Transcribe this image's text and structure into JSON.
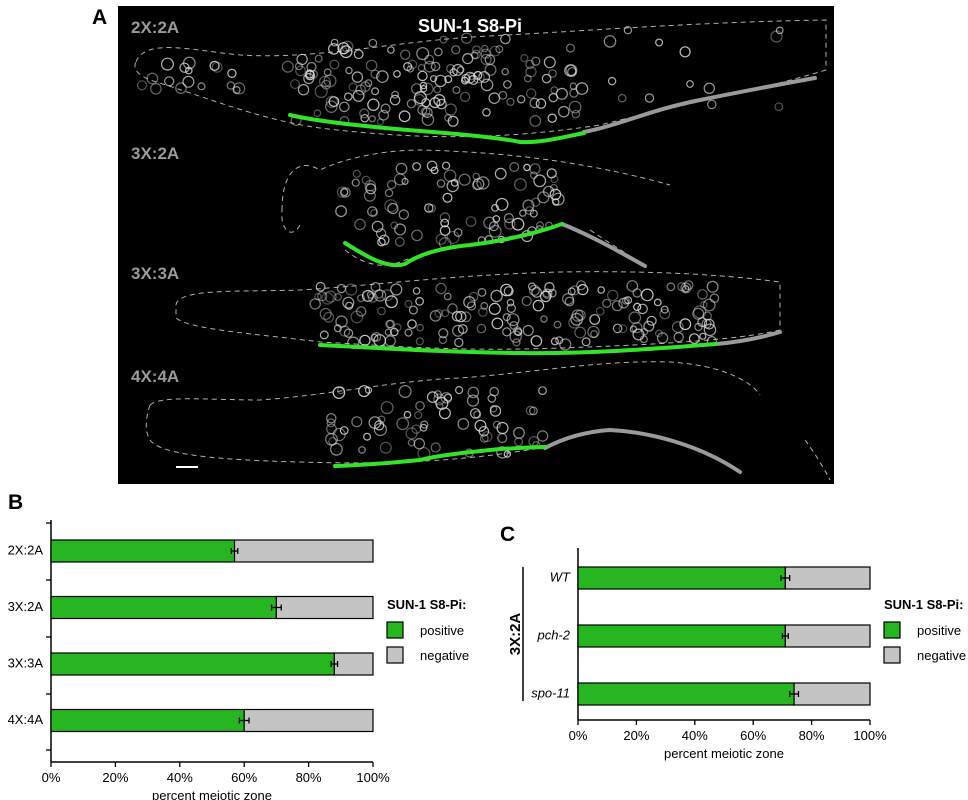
{
  "panels": {
    "a": {
      "letter": "A",
      "title": "SUN-1 S8-Pi",
      "rows": [
        "2X:2A",
        "3X:2A",
        "3X:3A",
        "4X:4A"
      ],
      "colors": {
        "positive_line": "#35e22a",
        "negative_line": "#9a9a9a",
        "background": "#000000"
      }
    },
    "b": {
      "letter": "B"
    },
    "c": {
      "letter": "C",
      "group_label": "3X:2A"
    }
  },
  "chart_data": [
    {
      "type": "bar",
      "orientation": "horizontal",
      "stacked": true,
      "categories": [
        "2X:2A",
        "3X:2A",
        "3X:3A",
        "4X:4A"
      ],
      "series": [
        {
          "name": "positive",
          "values": [
            57,
            70,
            88,
            60
          ],
          "color": "#28b522"
        },
        {
          "name": "negative",
          "values": [
            43,
            30,
            12,
            40
          ],
          "color": "#c4c4c4"
        }
      ],
      "error_bars": [
        1,
        1.5,
        1,
        1.5
      ],
      "xlabel": "percent meiotic zone",
      "xticks": [
        "0%",
        "20%",
        "40%",
        "60%",
        "80%",
        "100%"
      ],
      "xlim": [
        0,
        100
      ],
      "legend": {
        "title": "SUN-1 S8-Pi:",
        "placement": "right",
        "items": [
          "positive",
          "negative"
        ]
      }
    },
    {
      "type": "bar",
      "orientation": "horizontal",
      "stacked": true,
      "categories": [
        "WT",
        "pch-2",
        "spo-11"
      ],
      "series": [
        {
          "name": "positive",
          "values": [
            71,
            71,
            74
          ],
          "color": "#28b522"
        },
        {
          "name": "negative",
          "values": [
            29,
            29,
            26
          ],
          "color": "#c4c4c4"
        }
      ],
      "error_bars": [
        1.5,
        1,
        1.5
      ],
      "xlabel": "percent meiotic zone",
      "xticks": [
        "0%",
        "20%",
        "40%",
        "60%",
        "80%",
        "100%"
      ],
      "xlim": [
        0,
        100
      ],
      "legend": {
        "title": "SUN-1 S8-Pi:",
        "placement": "right",
        "items": [
          "positive",
          "negative"
        ]
      }
    }
  ]
}
